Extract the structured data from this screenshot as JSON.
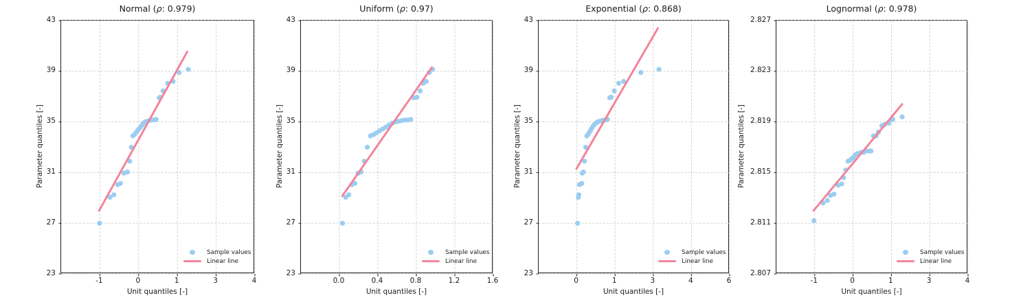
{
  "figure": {
    "type": "qq-plot-grid",
    "background": "#ffffff",
    "subplot_count": 4
  },
  "colors": {
    "sample_dot": "#9bcdf0",
    "linear_line": "#f2849b",
    "grid": "#cccccc",
    "spine": "#1a1a1a",
    "text": "#1a1a1a"
  },
  "chart_data": [
    {
      "type": "scatter",
      "distribution": "Normal",
      "title": "Normal (ρ: 0.979)",
      "title_prefix": "Normal (",
      "rho_symbol": "ρ",
      "title_suffix": ": 0.979)",
      "rho": 0.979,
      "xlabel": "Unit quantiles [-]",
      "ylabel": "Parameter quantiles [-]",
      "grid": true,
      "legend_position": "lower right",
      "legend": {
        "sample": "Sample values",
        "line": "Linear line"
      },
      "x_tick_labels": [
        "-1",
        "0",
        "1",
        "3",
        "4"
      ],
      "x_tick_values": [
        -1,
        0,
        1,
        3,
        4
      ],
      "y_tick_labels": [
        "23",
        "27",
        "31",
        "35",
        "39",
        "43"
      ],
      "y_tick_values": [
        23,
        27,
        31,
        35,
        39,
        43
      ],
      "points": {
        "x": [
          -1.01,
          -0.74,
          -0.64,
          -0.54,
          -0.47,
          -0.38,
          -0.29,
          -0.23,
          -0.19,
          -0.15,
          -0.11,
          -0.07,
          -0.03,
          0.01,
          0.05,
          0.09,
          0.13,
          0.17,
          0.22,
          0.27,
          0.32,
          0.38,
          0.45,
          0.53,
          0.56,
          0.63,
          0.75,
          0.89,
          1.09,
          1.56
        ],
        "y": [
          27.0,
          29.05,
          29.25,
          30.05,
          30.15,
          30.95,
          31.05,
          31.9,
          33.0,
          33.9,
          34.0,
          34.15,
          34.3,
          34.45,
          34.6,
          34.75,
          34.9,
          35.0,
          35.05,
          35.1,
          35.15,
          35.15,
          35.2,
          36.9,
          36.95,
          37.45,
          38.05,
          38.2,
          38.9,
          39.15
        ]
      },
      "linear_line": {
        "x": [
          -1.02,
          1.51
        ],
        "y": [
          28.0,
          40.55
        ]
      }
    },
    {
      "type": "scatter",
      "distribution": "Uniform",
      "title": "Uniform (ρ: 0.97)",
      "title_prefix": "Uniform (",
      "rho_symbol": "ρ",
      "title_suffix": ": 0.97)",
      "rho": 0.97,
      "xlabel": "Unit quantiles [-]",
      "ylabel": "Parameter quantiles [-]",
      "grid": true,
      "legend_position": "lower right",
      "legend": {
        "sample": "Sample values",
        "line": "Linear line"
      },
      "x_tick_labels": [
        "0.0",
        "0.4",
        "0.8",
        "1.2",
        "1.6"
      ],
      "x_tick_values": [
        0.0,
        0.4,
        0.8,
        1.2,
        1.6
      ],
      "y_tick_labels": [
        "23",
        "27",
        "31",
        "35",
        "39",
        "43"
      ],
      "y_tick_values": [
        23,
        27,
        31,
        35,
        39,
        43
      ],
      "points": {
        "x": [
          0.032,
          0.065,
          0.097,
          0.129,
          0.161,
          0.194,
          0.226,
          0.258,
          0.29,
          0.323,
          0.355,
          0.387,
          0.419,
          0.452,
          0.484,
          0.516,
          0.548,
          0.581,
          0.613,
          0.645,
          0.677,
          0.71,
          0.742,
          0.774,
          0.806,
          0.839,
          0.871,
          0.903,
          0.935,
          0.968
        ],
        "y": [
          27.0,
          29.05,
          29.25,
          30.05,
          30.15,
          30.95,
          31.05,
          31.9,
          33.0,
          33.9,
          34.0,
          34.15,
          34.3,
          34.45,
          34.6,
          34.75,
          34.9,
          35.0,
          35.05,
          35.1,
          35.15,
          35.15,
          35.2,
          36.9,
          36.95,
          37.45,
          38.05,
          38.2,
          38.9,
          39.15
        ]
      },
      "linear_line": {
        "x": [
          0.03,
          0.96
        ],
        "y": [
          29.15,
          39.3
        ]
      }
    },
    {
      "type": "scatter",
      "distribution": "Exponential",
      "title": "Exponential (ρ: 0.868)",
      "title_prefix": "Exponential (",
      "rho_symbol": "ρ",
      "title_suffix": ": 0.868)",
      "rho": 0.868,
      "xlabel": "Unit quantiles [-]",
      "ylabel": "Parameter quantiles [-]",
      "grid": true,
      "legend_position": "lower right",
      "legend": {
        "sample": "Sample values",
        "line": "Linear line"
      },
      "x_tick_labels": [
        "0",
        "1",
        "3",
        "4",
        "6"
      ],
      "x_tick_values": [
        0,
        1,
        3,
        4,
        6
      ],
      "y_tick_labels": [
        "23",
        "27",
        "31",
        "35",
        "39",
        "43"
      ],
      "y_tick_values": [
        23,
        27,
        31,
        35,
        39,
        43
      ],
      "points": {
        "x": [
          0.02,
          0.04,
          0.05,
          0.07,
          0.13,
          0.14,
          0.17,
          0.2,
          0.23,
          0.26,
          0.29,
          0.32,
          0.35,
          0.38,
          0.41,
          0.45,
          0.5,
          0.54,
          0.59,
          0.65,
          0.7,
          0.75,
          0.8,
          0.86,
          0.9,
          0.98,
          1.19,
          1.45,
          2.35,
          3.15
        ],
        "y": [
          27.0,
          29.05,
          29.25,
          30.05,
          30.15,
          30.95,
          31.05,
          31.9,
          33.0,
          33.9,
          34.0,
          34.15,
          34.3,
          34.45,
          34.6,
          34.75,
          34.9,
          35.0,
          35.05,
          35.1,
          35.15,
          35.15,
          35.2,
          36.9,
          36.95,
          37.45,
          38.05,
          38.2,
          38.9,
          39.15
        ]
      },
      "linear_line": {
        "x": [
          -0.01,
          3.12
        ],
        "y": [
          31.3,
          42.4
        ]
      }
    },
    {
      "type": "scatter",
      "distribution": "Lognormal",
      "title": "Lognormal (ρ: 0.978)",
      "title_prefix": "Lognormal (",
      "rho_symbol": "ρ",
      "title_suffix": ": 0.978)",
      "rho": 0.978,
      "xlabel": "Unit quantiles [-]",
      "ylabel": "Parameter quantiles [-]",
      "grid": true,
      "legend_position": "lower right",
      "legend": {
        "sample": "Sample values",
        "line": "Linear line"
      },
      "x_tick_labels": [
        "-1",
        "0",
        "1",
        "3",
        "4"
      ],
      "x_tick_values": [
        -1,
        0,
        1,
        3,
        4
      ],
      "y_tick_labels": [
        "2.807",
        "2.811",
        "2.815",
        "2.819",
        "2.823",
        "2.827"
      ],
      "y_tick_values": [
        2.807,
        2.811,
        2.815,
        2.819,
        2.823,
        2.827
      ],
      "points": {
        "x": [
          -1.02,
          -0.78,
          -0.67,
          -0.59,
          -0.5,
          -0.39,
          -0.3,
          -0.25,
          -0.19,
          -0.13,
          -0.07,
          -0.03,
          0.01,
          0.06,
          0.11,
          0.15,
          0.21,
          0.27,
          0.33,
          0.41,
          0.47,
          0.53,
          0.6,
          0.66,
          0.75,
          0.82,
          0.93,
          1.0,
          1.07,
          1.56
        ],
        "y": [
          2.8112,
          2.8126,
          2.8128,
          2.8132,
          2.8133,
          2.814,
          2.8141,
          2.8146,
          2.8152,
          2.8159,
          2.816,
          2.8161,
          2.8162,
          2.8164,
          2.8165,
          2.8165,
          2.8166,
          2.8166,
          2.8167,
          2.8167,
          2.8167,
          2.8179,
          2.8179,
          2.8182,
          2.8187,
          2.8188,
          2.8189,
          2.8192,
          2.8192,
          2.8194
        ],
        "note": ""
      },
      "linear_line": {
        "x": [
          -1.03,
          1.56
        ],
        "y": [
          2.812,
          2.8204
        ]
      }
    }
  ]
}
